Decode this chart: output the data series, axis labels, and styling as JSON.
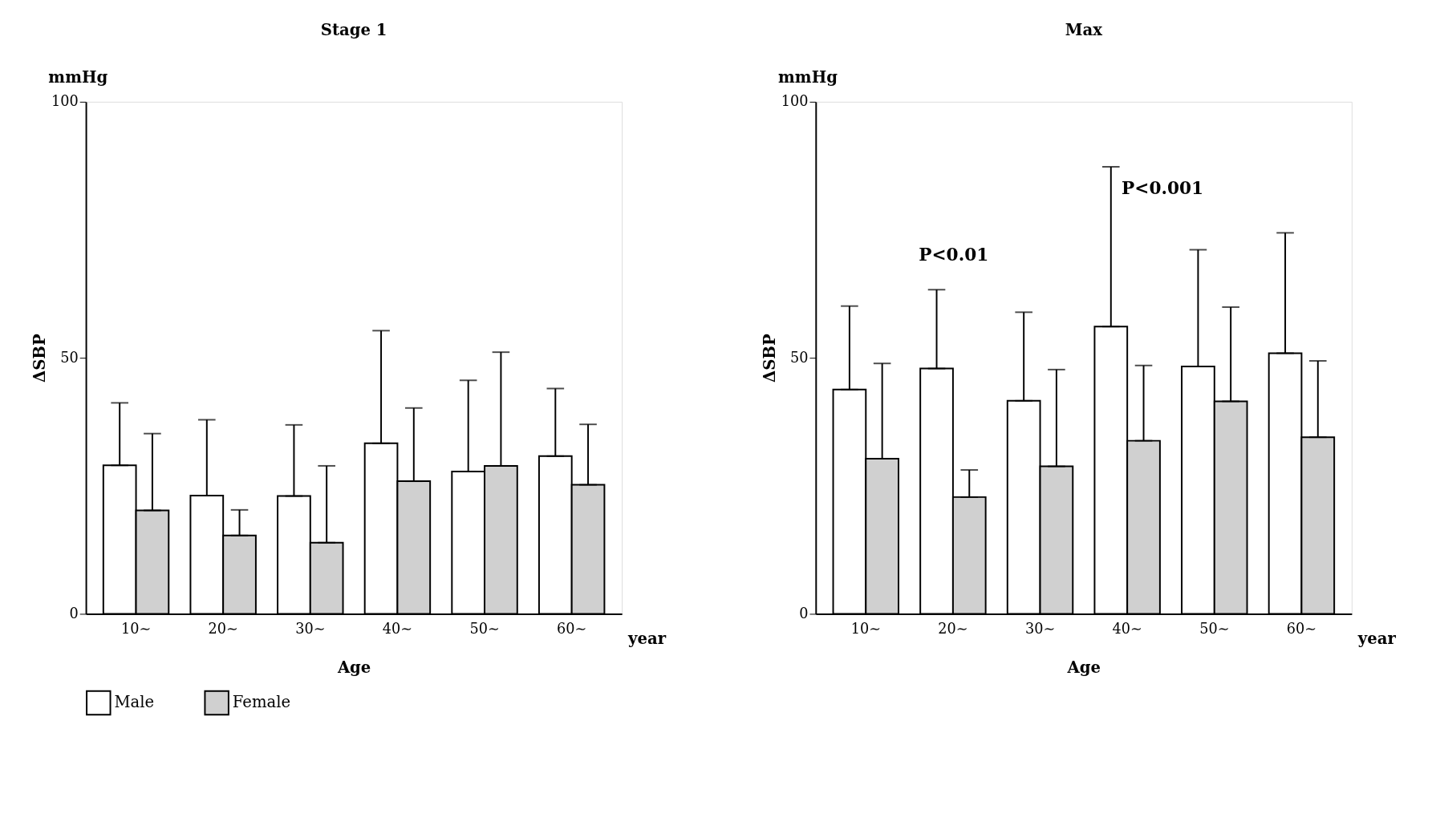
{
  "chart_data": [
    {
      "type": "bar",
      "title": "Stage 1",
      "xlabel": "Age",
      "ylabel": "ΔSBP",
      "categories": [
        "10∼",
        "20∼",
        "30∼",
        "40∼",
        "50∼",
        "60∼"
      ],
      "ylim": [
        0,
        100
      ],
      "yticks": [
        0,
        50,
        100
      ],
      "grid": false,
      "legend": "bottom",
      "series": [
        {
          "name": "Male",
          "color": "#ffffff",
          "values": [
            29.0,
            23.1,
            23.0,
            33.3,
            27.8,
            30.8
          ],
          "errors": [
            [
              29.0,
              41.2
            ],
            [
              23.1,
              37.9
            ],
            [
              23.0,
              36.9
            ],
            [
              33.3,
              55.3
            ],
            [
              27.8,
              45.6
            ],
            [
              30.8,
              44.0
            ]
          ]
        },
        {
          "name": "Female",
          "color": "#d0d0d0",
          "values": [
            20.2,
            15.3,
            13.9,
            25.9,
            28.9,
            25.2
          ],
          "errors": [
            [
              20.2,
              35.2
            ],
            [
              15.3,
              20.3
            ],
            [
              13.9,
              28.9
            ],
            [
              25.9,
              40.2
            ],
            [
              28.9,
              51.1
            ],
            [
              25.2,
              37.0
            ]
          ]
        }
      ],
      "annotations": [
        "mmHg",
        "year"
      ]
    },
    {
      "type": "bar",
      "title": "Max",
      "xlabel": "Age",
      "ylabel": "ΔSBP",
      "categories": [
        "10∼",
        "20∼",
        "30∼",
        "40∼",
        "50∼",
        "60∼"
      ],
      "ylim": [
        0,
        100
      ],
      "yticks": [
        0,
        50,
        100
      ],
      "grid": false,
      "legend": "bottom",
      "series": [
        {
          "name": "Male",
          "color": "#ffffff",
          "values": [
            43.8,
            47.9,
            41.6,
            56.1,
            48.3,
            50.9
          ],
          "errors": [
            [
              43.8,
              60.1
            ],
            [
              47.9,
              63.3
            ],
            [
              41.6,
              58.9
            ],
            [
              56.1,
              87.3
            ],
            [
              48.3,
              71.1
            ],
            [
              50.9,
              74.4
            ]
          ]
        },
        {
          "name": "Female",
          "color": "#d0d0d0",
          "values": [
            30.3,
            22.8,
            28.8,
            33.8,
            41.5,
            34.5
          ],
          "errors": [
            [
              30.3,
              48.9
            ],
            [
              22.8,
              28.1
            ],
            [
              28.8,
              47.7
            ],
            [
              33.8,
              48.5
            ],
            [
              41.5,
              59.9
            ],
            [
              34.5,
              49.4
            ]
          ]
        }
      ],
      "annotations": [
        "mmHg",
        "year",
        "P<0.01",
        "P<0.001"
      ]
    }
  ]
}
